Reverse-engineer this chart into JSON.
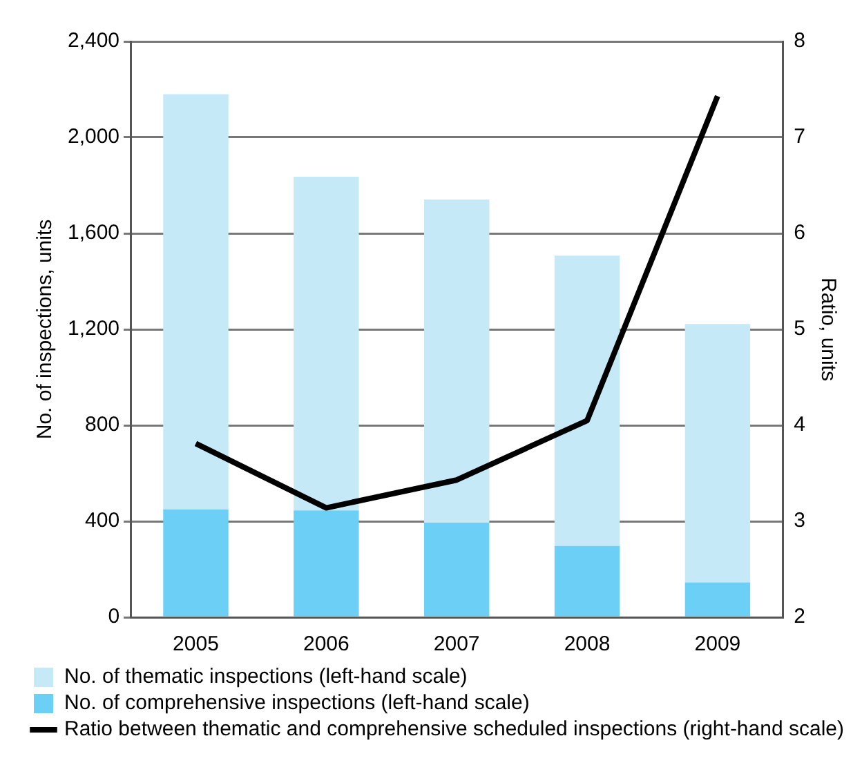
{
  "chart_data": {
    "type": "bar",
    "stacked": true,
    "categories": [
      "2005",
      "2006",
      "2007",
      "2008",
      "2009"
    ],
    "ylabel": "No. of inspections, units",
    "y2label": "Ratio, units",
    "ylim": [
      0,
      2400
    ],
    "yticks": [
      0,
      400,
      800,
      {
        "value": 1200,
        "label": "1,200"
      },
      {
        "value": 1600,
        "label": "1,600"
      },
      {
        "value": 2000,
        "label": "2,000"
      },
      {
        "value": 2400,
        "label": "2,400"
      }
    ],
    "y2lim": [
      2,
      8
    ],
    "y2ticks": [
      2,
      3,
      4,
      5,
      6,
      7,
      8
    ],
    "grid": "y",
    "legend": "bottom",
    "series": [
      {
        "name": "No. of comprehensive inspections (left-hand scale)",
        "color": "#6ccff5",
        "values": [
          450,
          445,
          394,
          297,
          145
        ]
      },
      {
        "name": "No. of thematic inspections (left-hand scale)",
        "color": "#c6e9f8",
        "values": [
          1730,
          1391,
          1347,
          1210,
          1077
        ]
      },
      {
        "name": "Ratio between thematic and comprehensive scheduled inspections (right-hand scale)",
        "type": "line",
        "axis": "y2",
        "color": "#000000",
        "values": [
          3.81,
          3.14,
          3.43,
          4.05,
          7.43
        ]
      }
    ]
  }
}
